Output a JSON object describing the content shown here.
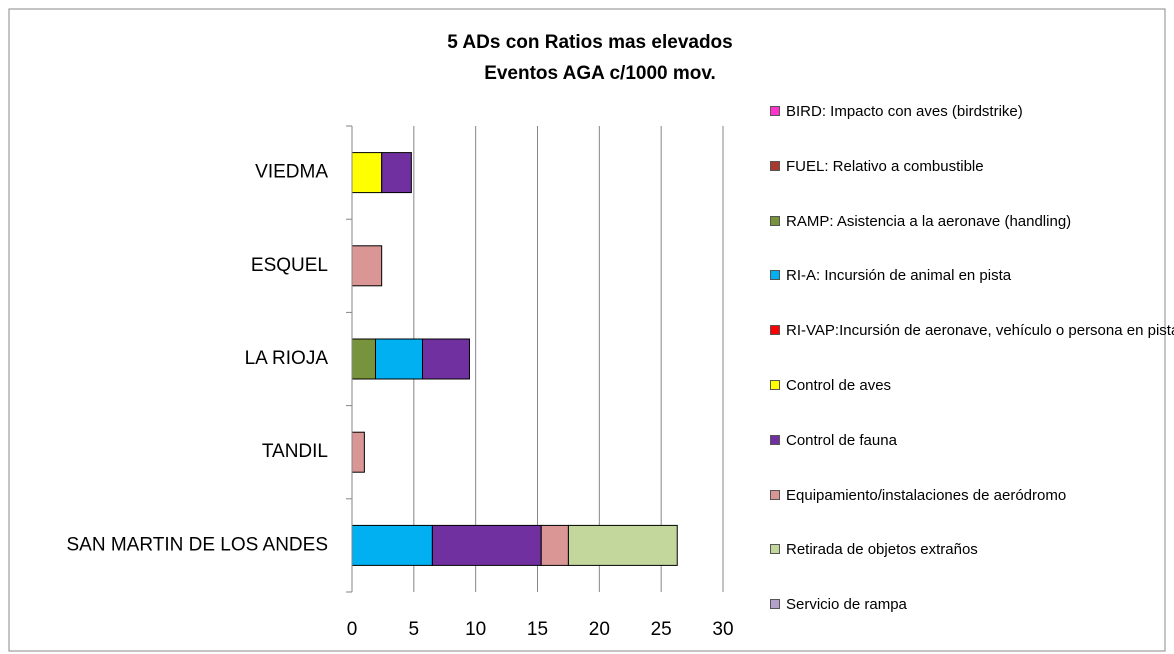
{
  "chart_data": {
    "type": "stacked_barh",
    "title": "5 ADs con Ratios mas elevados",
    "subtitle": "Eventos AGA c/1000 mov.",
    "categories": [
      "SAN MARTIN DE LOS ANDES",
      "TANDIL",
      "LA RIOJA",
      "ESQUEL",
      "VIEDMA"
    ],
    "series": [
      {
        "name": "BIRD: Impacto con aves (birdstrike)",
        "color": "#ff33cc",
        "values": [
          0,
          0,
          0,
          0,
          0
        ]
      },
      {
        "name": "FUEL: Relativo a combustible",
        "color": "#a9382f",
        "values": [
          0,
          0,
          0,
          0,
          0
        ]
      },
      {
        "name": "RAMP: Asistencia a la aeronave (handling)",
        "color": "#77933c",
        "values": [
          0,
          0,
          1.9,
          0,
          0
        ]
      },
      {
        "name": "RI-A: Incursión de animal en pista",
        "color": "#00b0f0",
        "values": [
          6.5,
          0,
          3.8,
          0,
          0
        ]
      },
      {
        "name": "RI-VAP:Incursión de aeronave, vehículo o persona en pista",
        "color": "#ff0000",
        "values": [
          0,
          0,
          0,
          0,
          0
        ]
      },
      {
        "name": "Control de aves",
        "color": "#ffff00",
        "values": [
          0,
          0,
          0,
          0,
          2.4
        ]
      },
      {
        "name": "Control de fauna",
        "color": "#7030a0",
        "values": [
          8.8,
          0,
          3.8,
          0,
          2.4
        ]
      },
      {
        "name": "Equipamiento/instalaciones de aeródromo",
        "color": "#d99694",
        "values": [
          2.2,
          1.0,
          0,
          2.4,
          0
        ]
      },
      {
        "name": "Retirada de objetos extraños",
        "color": "#c3d69b",
        "values": [
          8.8,
          0,
          0,
          0,
          0
        ]
      },
      {
        "name": "Servicio de rampa",
        "color": "#b3a2c7",
        "values": [
          0,
          0,
          0,
          0,
          0
        ]
      }
    ],
    "xlim": [
      0,
      30
    ],
    "xticks": [
      0,
      5,
      10,
      15,
      20,
      25,
      30
    ],
    "grid": true,
    "legend": "right"
  }
}
